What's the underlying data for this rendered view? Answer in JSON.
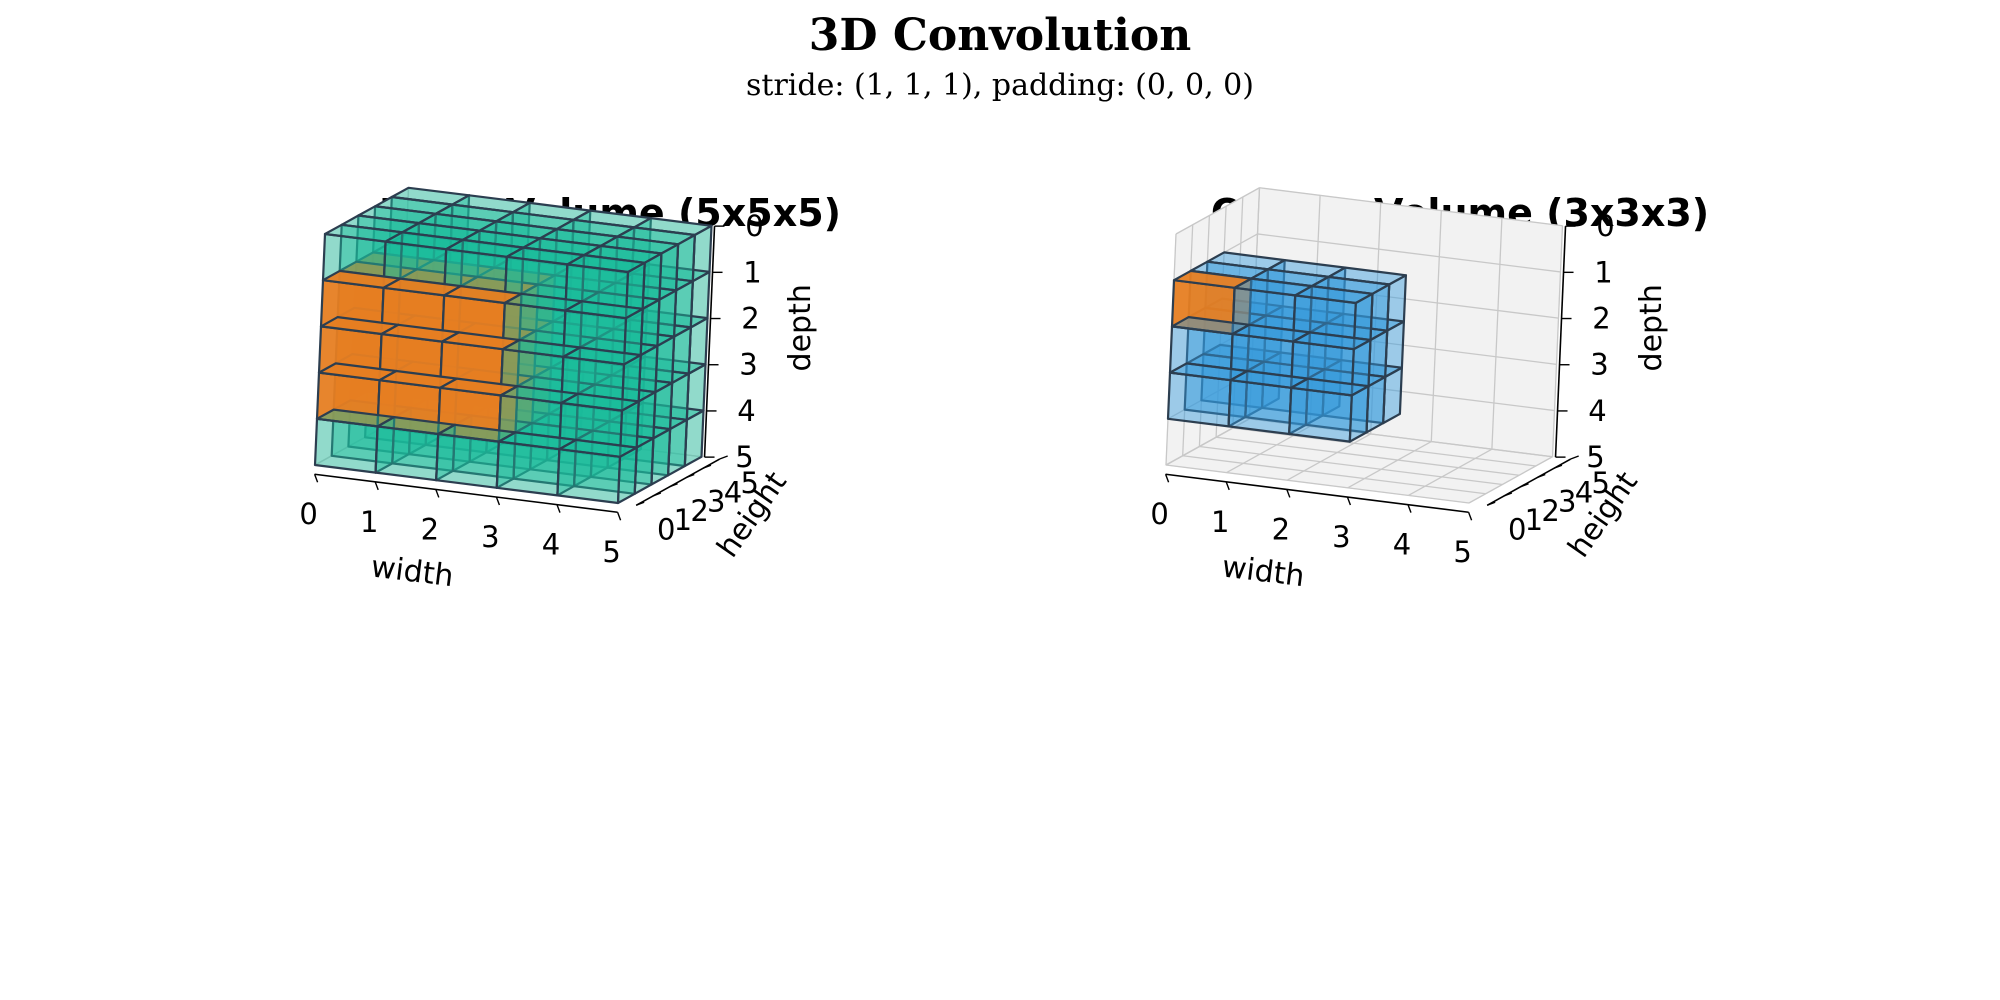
{
  "figure": {
    "title": "3D Convolution",
    "subtitle": "stride: (1, 1, 1), padding: (0, 0, 0)"
  },
  "colors": {
    "kernel": "#e67e22",
    "input_cube": "#1abc9c",
    "output_cube": "#3498db",
    "edge": "#2c3e50",
    "pane": "#f2f2f2",
    "grid": "#c8c8c8"
  },
  "panels": [
    {
      "title": "Input Volume (5x5x5)",
      "volume": {
        "width": 5,
        "height": 5,
        "depth": 5,
        "color_key": "input_cube"
      },
      "highlight": {
        "width_range": [
          0,
          3
        ],
        "height_range": [
          0,
          3
        ],
        "depth_range": [
          1,
          4
        ]
      },
      "axes": {
        "width": {
          "label": "width",
          "ticks": [
            "0",
            "1",
            "2",
            "3",
            "4",
            "5"
          ]
        },
        "height": {
          "label": "height",
          "ticks": [
            "0",
            "1",
            "2",
            "3",
            "4",
            "5"
          ]
        },
        "depth": {
          "label": "depth",
          "ticks": [
            "0",
            "1",
            "2",
            "3",
            "4",
            "5"
          ],
          "inverted": true
        }
      }
    },
    {
      "title": "Output Volume (3x3x3)",
      "volume": {
        "width": 3,
        "height": 3,
        "depth": 3,
        "color_key": "output_cube"
      },
      "highlight": {
        "width_range": [
          0,
          1
        ],
        "height_range": [
          0,
          1
        ],
        "depth_range": [
          1,
          2
        ]
      },
      "axes": {
        "width": {
          "label": "width",
          "ticks": [
            "0",
            "1",
            "2",
            "3",
            "4",
            "5"
          ]
        },
        "height": {
          "label": "height",
          "ticks": [
            "0",
            "1",
            "2",
            "3",
            "4",
            "5"
          ]
        },
        "depth": {
          "label": "depth",
          "ticks": [
            "0",
            "1",
            "2",
            "3",
            "4",
            "5"
          ],
          "inverted": true
        }
      }
    }
  ]
}
